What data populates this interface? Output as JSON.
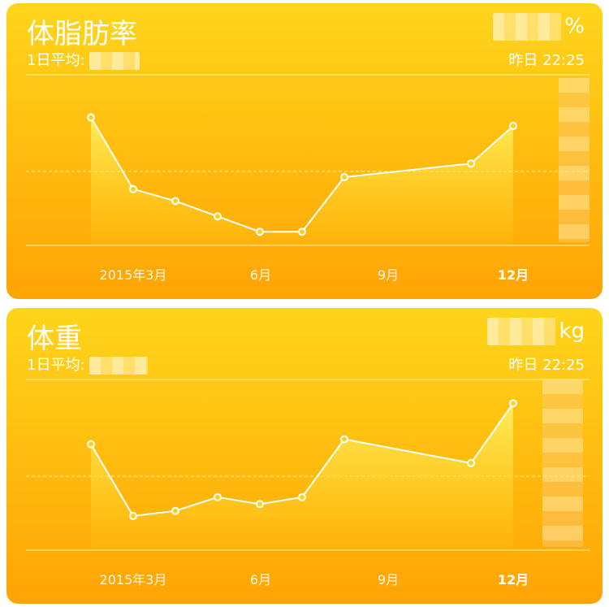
{
  "cards": [
    {
      "title": "体脂肪率",
      "avg_label": "1日平均:",
      "unit": "%",
      "time": "昨日 22:25",
      "chart_data": {
        "type": "line",
        "categories": [
          "2015年3月",
          "6月",
          "9月",
          "12月"
        ],
        "x": [
          0,
          1,
          2,
          3,
          4,
          5,
          6,
          9,
          10
        ],
        "values": [
          75,
          33,
          26,
          17,
          8,
          8,
          40,
          48,
          70
        ],
        "ylim": [
          0,
          100
        ],
        "grid": true
      }
    },
    {
      "title": "体重",
      "avg_label": "1日平均:",
      "unit": "kg",
      "time": "昨日 22:25",
      "chart_data": {
        "type": "line",
        "categories": [
          "2015年3月",
          "6月",
          "9月",
          "12月"
        ],
        "x": [
          0,
          1,
          2,
          3,
          4,
          5,
          6,
          9,
          10
        ],
        "values": [
          62,
          20,
          23,
          31,
          27,
          31,
          65,
          51,
          86
        ],
        "ylim": [
          0,
          100
        ],
        "grid": true
      }
    }
  ],
  "colors": {
    "accent": "#ffc612",
    "line": "#ffffff"
  }
}
